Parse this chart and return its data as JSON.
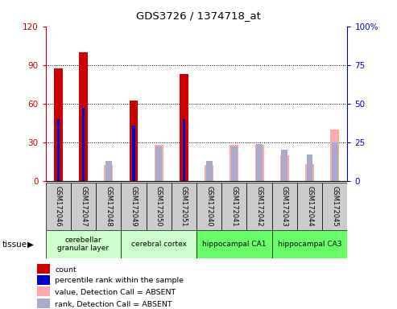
{
  "title": "GDS3726 / 1374718_at",
  "samples": [
    "GSM172046",
    "GSM172047",
    "GSM172048",
    "GSM172049",
    "GSM172050",
    "GSM172051",
    "GSM172040",
    "GSM172041",
    "GSM172042",
    "GSM172043",
    "GSM172044",
    "GSM172045"
  ],
  "count_values": [
    87,
    100,
    0,
    62,
    0,
    83,
    0,
    0,
    0,
    0,
    0,
    0
  ],
  "percentile_values": [
    40,
    47,
    0,
    36,
    0,
    40,
    0,
    0,
    0,
    0,
    0,
    0
  ],
  "absent_value_values": [
    0,
    0,
    12,
    0,
    28,
    0,
    12,
    28,
    28,
    20,
    13,
    40
  ],
  "absent_rank_values": [
    0,
    0,
    13,
    0,
    22,
    0,
    13,
    22,
    24,
    20,
    17,
    25
  ],
  "ylim_left": [
    0,
    120
  ],
  "ylim_right": [
    0,
    100
  ],
  "yticks_left": [
    0,
    30,
    60,
    90,
    120
  ],
  "yticks_right": [
    0,
    25,
    50,
    75,
    100
  ],
  "left_tick_labels": [
    "0",
    "30",
    "60",
    "90",
    "120"
  ],
  "right_tick_labels": [
    "0",
    "25",
    "50",
    "75",
    "100%"
  ],
  "tissues": [
    {
      "label": "cerebellar\ngranular layer",
      "start": 0,
      "end": 3,
      "color": "#ccffcc"
    },
    {
      "label": "cerebral cortex",
      "start": 3,
      "end": 6,
      "color": "#ccffcc"
    },
    {
      "label": "hippocampal CA1",
      "start": 6,
      "end": 9,
      "color": "#66ff66"
    },
    {
      "label": "hippocampal CA3",
      "start": 9,
      "end": 12,
      "color": "#66ff66"
    }
  ],
  "count_color": "#cc0000",
  "percentile_color": "#0000cc",
  "absent_value_color": "#ffaaaa",
  "absent_rank_color": "#aaaacc",
  "legend_items": [
    {
      "label": "count",
      "color": "#cc0000"
    },
    {
      "label": "percentile rank within the sample",
      "color": "#0000cc"
    },
    {
      "label": "value, Detection Call = ABSENT",
      "color": "#ffaaaa"
    },
    {
      "label": "rank, Detection Call = ABSENT",
      "color": "#aaaacc"
    }
  ],
  "background_color": "#ffffff",
  "sample_bg_color": "#cccccc",
  "left_axis_color": "#cc0000",
  "right_axis_color": "#0000cc"
}
